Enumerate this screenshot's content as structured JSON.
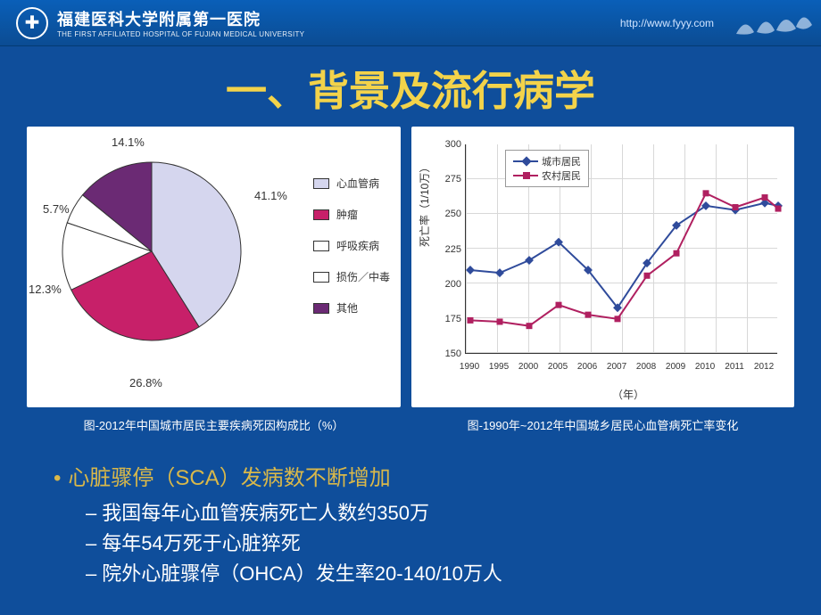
{
  "header": {
    "org_cn": "福建医科大学附属第一医院",
    "org_en": "THE FIRST AFFILIATED HOSPITAL OF FUJIAN MEDICAL UNIVERSITY",
    "url": "http://www.fyyy.com",
    "bg_top": "#0a5fb8",
    "bg_bottom": "#0b4c93"
  },
  "page": {
    "bg": "#0f4e9b",
    "title": "一、背景及流行病学",
    "title_color": "#f3d34a",
    "title_fontsize": 46
  },
  "pie": {
    "type": "pie",
    "caption": "图-2012年中国城市居民主要疾病死因构成比（%）",
    "background_color": "#ffffff",
    "label_fontsize": 13,
    "border_color": "#333333",
    "slices": [
      {
        "label": "心血管病",
        "value": 41.1,
        "color": "#d5d6ee",
        "display": "41.1%"
      },
      {
        "label": "肿瘤",
        "value": 26.8,
        "color": "#c72069",
        "display": "26.8%"
      },
      {
        "label": "呼吸疾病",
        "value": 12.3,
        "color": "#ffffff",
        "display": "12.3%"
      },
      {
        "label": "损伤／中毒",
        "value": 5.7,
        "color": "#ffffff",
        "display": "5.7%"
      },
      {
        "label": "其他",
        "value": 14.1,
        "color": "#6b2a74",
        "display": "14.1%"
      }
    ],
    "slice_separator_color": "#333333"
  },
  "line": {
    "type": "line",
    "caption": "图-1990年~2012年中国城乡居民心血管病死亡率变化",
    "background_color": "#ffffff",
    "grid_color": "#d8d8d8",
    "axis_color": "#333333",
    "y_label": "死亡率（1/10万）",
    "x_label": "（年）",
    "label_fontsize": 12,
    "tick_fontsize": 11,
    "ylim": [
      150,
      300
    ],
    "ytick_step": 25,
    "yticks": [
      150,
      175,
      200,
      225,
      250,
      275,
      300
    ],
    "x_categories": [
      "1990",
      "1995",
      "2000",
      "2005",
      "2006",
      "2007",
      "2008",
      "2009",
      "2010",
      "2011",
      "2012"
    ],
    "line_width": 2,
    "marker_size": 7,
    "series": [
      {
        "name": "城市居民",
        "color": "#2f4b9b",
        "marker": "diamond",
        "values": [
          210,
          208,
          217,
          230,
          210,
          183,
          215,
          242,
          256,
          253,
          258
        ]
      },
      {
        "name": "农村居民",
        "color": "#b02060",
        "marker": "square",
        "values": [
          174,
          173,
          170,
          185,
          178,
          175,
          206,
          222,
          265,
          255,
          262
        ]
      }
    ],
    "extra_tail_points": {
      "comment": "visible points beyond last tick (≈2012.5)",
      "城市居民": 256,
      "农村居民": 254
    }
  },
  "bullets": {
    "level1_color": "#d9b84a",
    "level1_fontsize": 24,
    "level2_color": "#ffffff",
    "level2_fontsize": 22,
    "items": {
      "main": "心脏骤停（SCA）发病数不断增加",
      "subs": [
        "我国每年心血管疾病死亡人数约350万",
        "每年54万死于心脏猝死",
        "院外心脏骤停（OHCA）发生率20-140/10万人"
      ]
    }
  }
}
